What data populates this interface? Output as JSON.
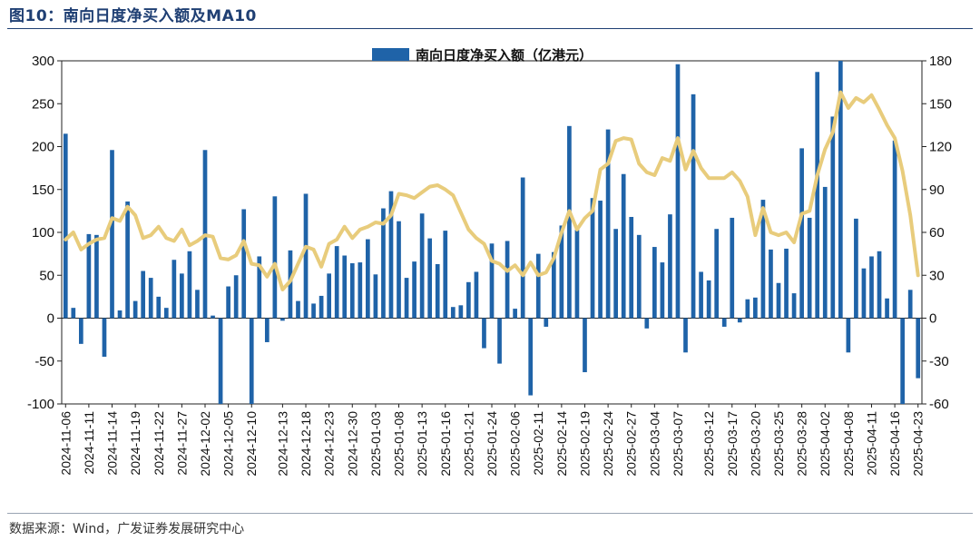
{
  "title": "图10：南向日度净买入额及MA10",
  "source": "数据来源：Wind，广发证券发展研究中心",
  "colors": {
    "bar": "#1f63a8",
    "line": "#e8cc7c",
    "title": "#1f3f73"
  },
  "chart_data": {
    "type": "bar",
    "title": "图10：南向日度净买入额及MA10",
    "legend": [
      "南向日度净买入额（亿港元）"
    ],
    "legend_position": "top-center",
    "left_axis": {
      "range": [
        -100,
        300
      ],
      "ticks": [
        -100,
        -50,
        0,
        50,
        100,
        150,
        200,
        250,
        300
      ]
    },
    "right_axis": {
      "range": [
        -60,
        180
      ],
      "ticks": [
        -60,
        -30,
        0,
        30,
        60,
        90,
        120,
        150,
        180
      ]
    },
    "x_tick_labels": [
      "2024-11-06",
      "2024-11-11",
      "2024-11-14",
      "2024-11-19",
      "2024-11-22",
      "2024-11-27",
      "2024-12-02",
      "2024-12-05",
      "2024-12-10",
      "2024-12-13",
      "2024-12-18",
      "2024-12-23",
      "2024-12-30",
      "2025-01-03",
      "2025-01-08",
      "2025-01-13",
      "2025-01-16",
      "2025-01-21",
      "2025-01-24",
      "2025-02-06",
      "2025-02-11",
      "2025-02-14",
      "2025-02-19",
      "2025-02-24",
      "2025-02-27",
      "2025-03-04",
      "2025-03-07",
      "2025-03-12",
      "2025-03-17",
      "2025-03-20",
      "2025-03-25",
      "2025-03-28",
      "2025-04-02",
      "2025-04-08",
      "2025-04-11",
      "2025-04-16",
      "2025-04-23"
    ],
    "daily_net_buy": [
      215,
      12,
      -30,
      98,
      97,
      -45,
      196,
      9,
      136,
      20,
      55,
      47,
      25,
      12,
      68,
      52,
      78,
      33,
      196,
      3,
      -105,
      37,
      50,
      127,
      -105,
      72,
      -28,
      142,
      -3,
      79,
      20,
      145,
      17,
      26,
      52,
      84,
      73,
      64,
      65,
      92,
      51,
      128,
      148,
      113,
      47,
      66,
      122,
      93,
      63,
      102,
      13,
      15,
      42,
      54,
      -35,
      87,
      -53,
      90,
      11,
      164,
      -90,
      75,
      -10,
      77,
      108,
      224,
      103,
      -63,
      140,
      137,
      220,
      104,
      168,
      118,
      97,
      -12,
      83,
      65,
      121,
      296,
      -40,
      261,
      54,
      44,
      104,
      -10,
      117,
      -5,
      22,
      24,
      138,
      80,
      41,
      81,
      29,
      198,
      117,
      287,
      153,
      235,
      300,
      -40,
      116,
      58,
      72,
      78,
      23,
      207,
      -105,
      33,
      -70
    ],
    "ma10": [
      55,
      60,
      48,
      52,
      55,
      56,
      70,
      68,
      78,
      72,
      56,
      58,
      64,
      56,
      54,
      62,
      51,
      54,
      58,
      57,
      42,
      41,
      44,
      54,
      38,
      37,
      29,
      38,
      20,
      26,
      38,
      50,
      48,
      36,
      52,
      55,
      64,
      56,
      62,
      64,
      67,
      66,
      72,
      87,
      86,
      84,
      88,
      92,
      93,
      90,
      86,
      74,
      62,
      56,
      52,
      40,
      38,
      33,
      37,
      30,
      39,
      30,
      32,
      42,
      60,
      75,
      62,
      70,
      75,
      104,
      108,
      124,
      126,
      125,
      108,
      102,
      100,
      112,
      110,
      126,
      104,
      117,
      105,
      98,
      98,
      98,
      102,
      96,
      85,
      58,
      77,
      60,
      58,
      60,
      53,
      73,
      75,
      100,
      118,
      130,
      158,
      147,
      154,
      151,
      156,
      146,
      135,
      126,
      103,
      72,
      30
    ]
  }
}
